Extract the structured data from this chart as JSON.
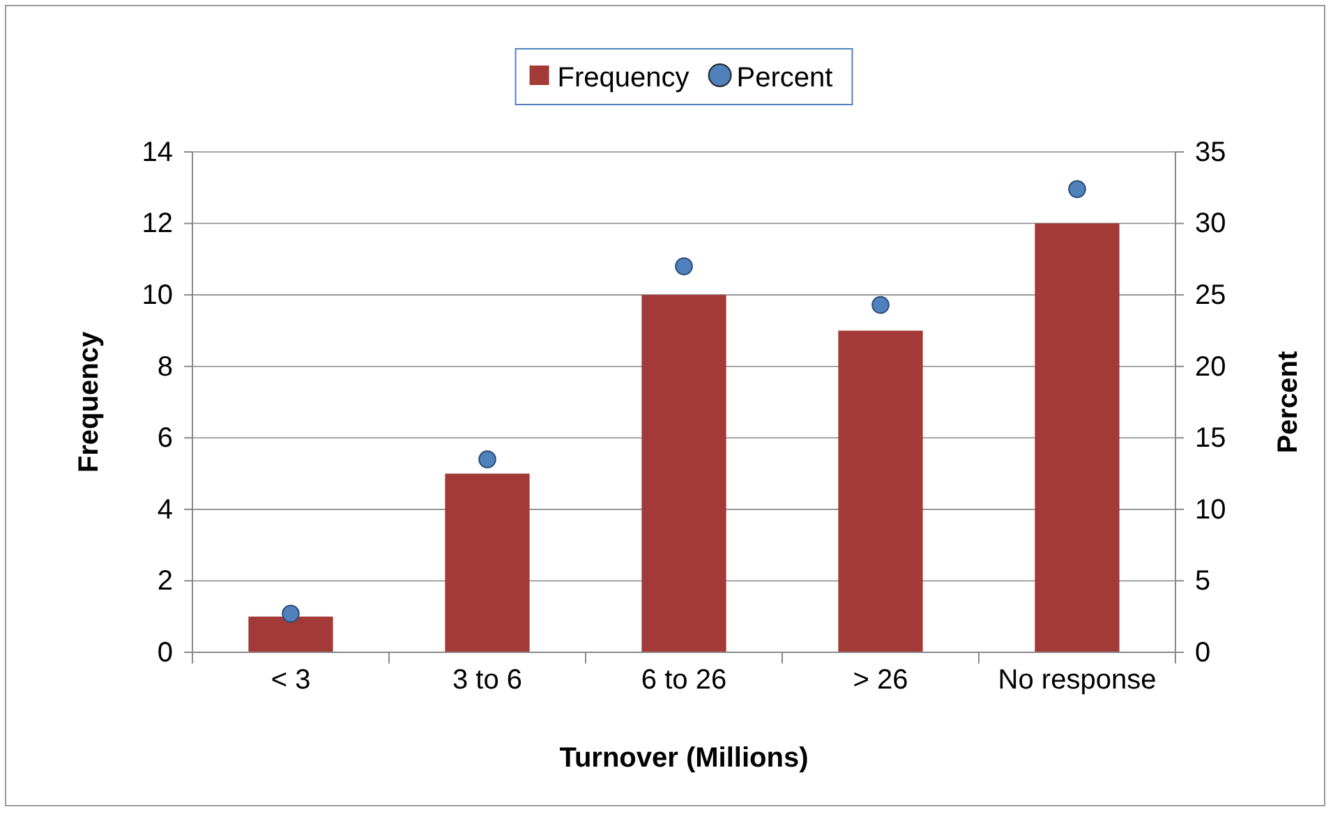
{
  "chart_data": {
    "type": "bar",
    "xlabel": "Turnover (Millions)",
    "ylabel": "Frequency",
    "y2label": "Percent",
    "categories": [
      "< 3",
      "3 to 6",
      "6 to 26",
      "> 26",
      "No response"
    ],
    "series": [
      {
        "name": "Frequency",
        "type": "bar",
        "color": "#a33a37",
        "values": [
          1,
          5,
          10,
          9,
          12
        ]
      },
      {
        "name": "Percent",
        "type": "scatter",
        "axis": "y2",
        "color": "#4f81bd",
        "values": [
          2.7,
          13.5,
          27.0,
          24.3,
          32.4
        ]
      }
    ],
    "ylim": [
      0,
      14
    ],
    "yticks": [
      0,
      2,
      4,
      6,
      8,
      10,
      12,
      14
    ],
    "y2lim": [
      0,
      35
    ],
    "y2ticks": [
      0,
      5,
      10,
      15,
      20,
      25,
      30,
      35
    ],
    "grid": "y",
    "legend": "top",
    "marker": "circle"
  }
}
